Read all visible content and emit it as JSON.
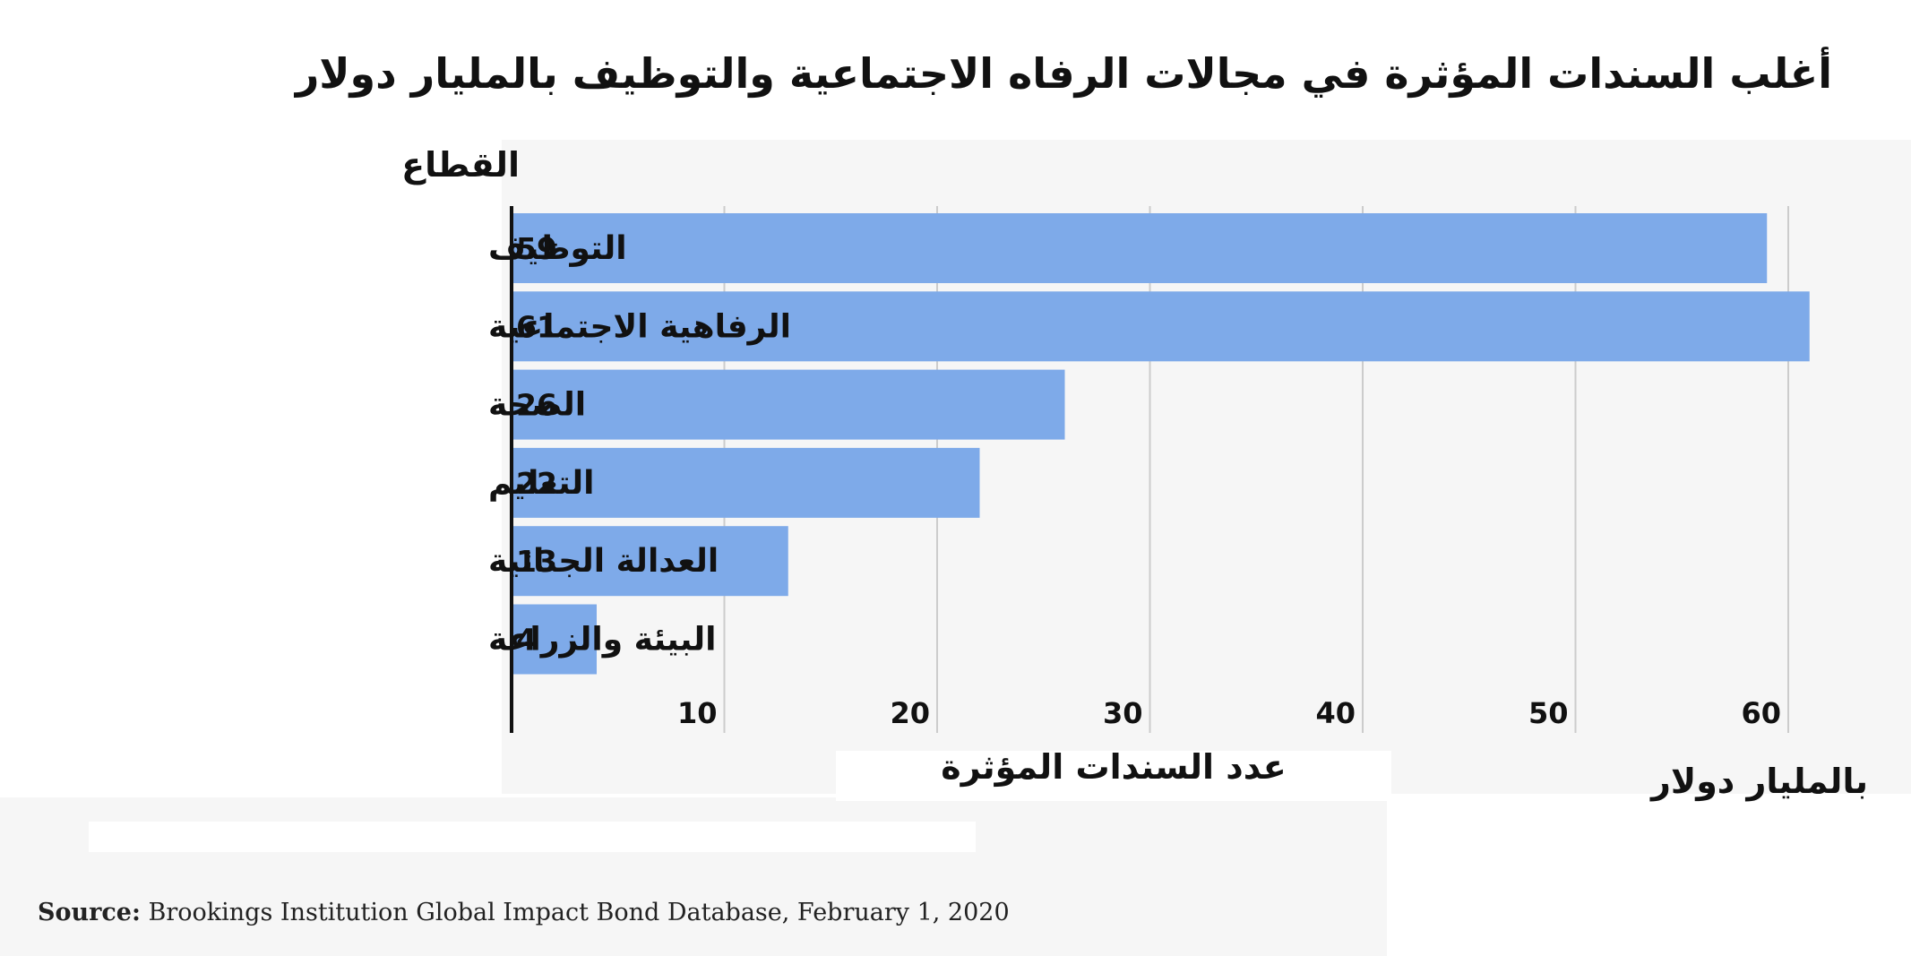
{
  "chart_data": {
    "type": "bar",
    "orientation": "horizontal",
    "title": "أغلب السندات المؤثرة في مجالات الرفاه الاجتماعية والتوظيف بالمليار دولار",
    "ylabel": "القطاع",
    "xlabel": "عدد السندات المؤثرة",
    "unit_label": "بالمليار دولار",
    "categories": [
      "التوظيف",
      "الرفاهية الاجتماعية",
      "الصحة",
      "التعليم",
      "العدالة الجنائية",
      "البيئة والزراعة"
    ],
    "values": [
      59,
      61,
      26,
      22,
      13,
      4
    ],
    "value_labels": [
      "59",
      "61",
      "26",
      "22",
      "13",
      "4"
    ],
    "xticks": [
      10,
      20,
      30,
      40,
      50,
      60
    ],
    "xtick_labels": [
      "10",
      "20",
      "30",
      "40",
      "50",
      "60"
    ],
    "xlim": [
      0,
      65
    ],
    "grid": "vertical",
    "bar_color": "#7eaae9",
    "gridline_color": "#cccccc",
    "axis_color": "#111111"
  },
  "source": {
    "label": "Source:",
    "text": " Brookings Institution Global Impact Bond Database, February 1, 2020"
  }
}
